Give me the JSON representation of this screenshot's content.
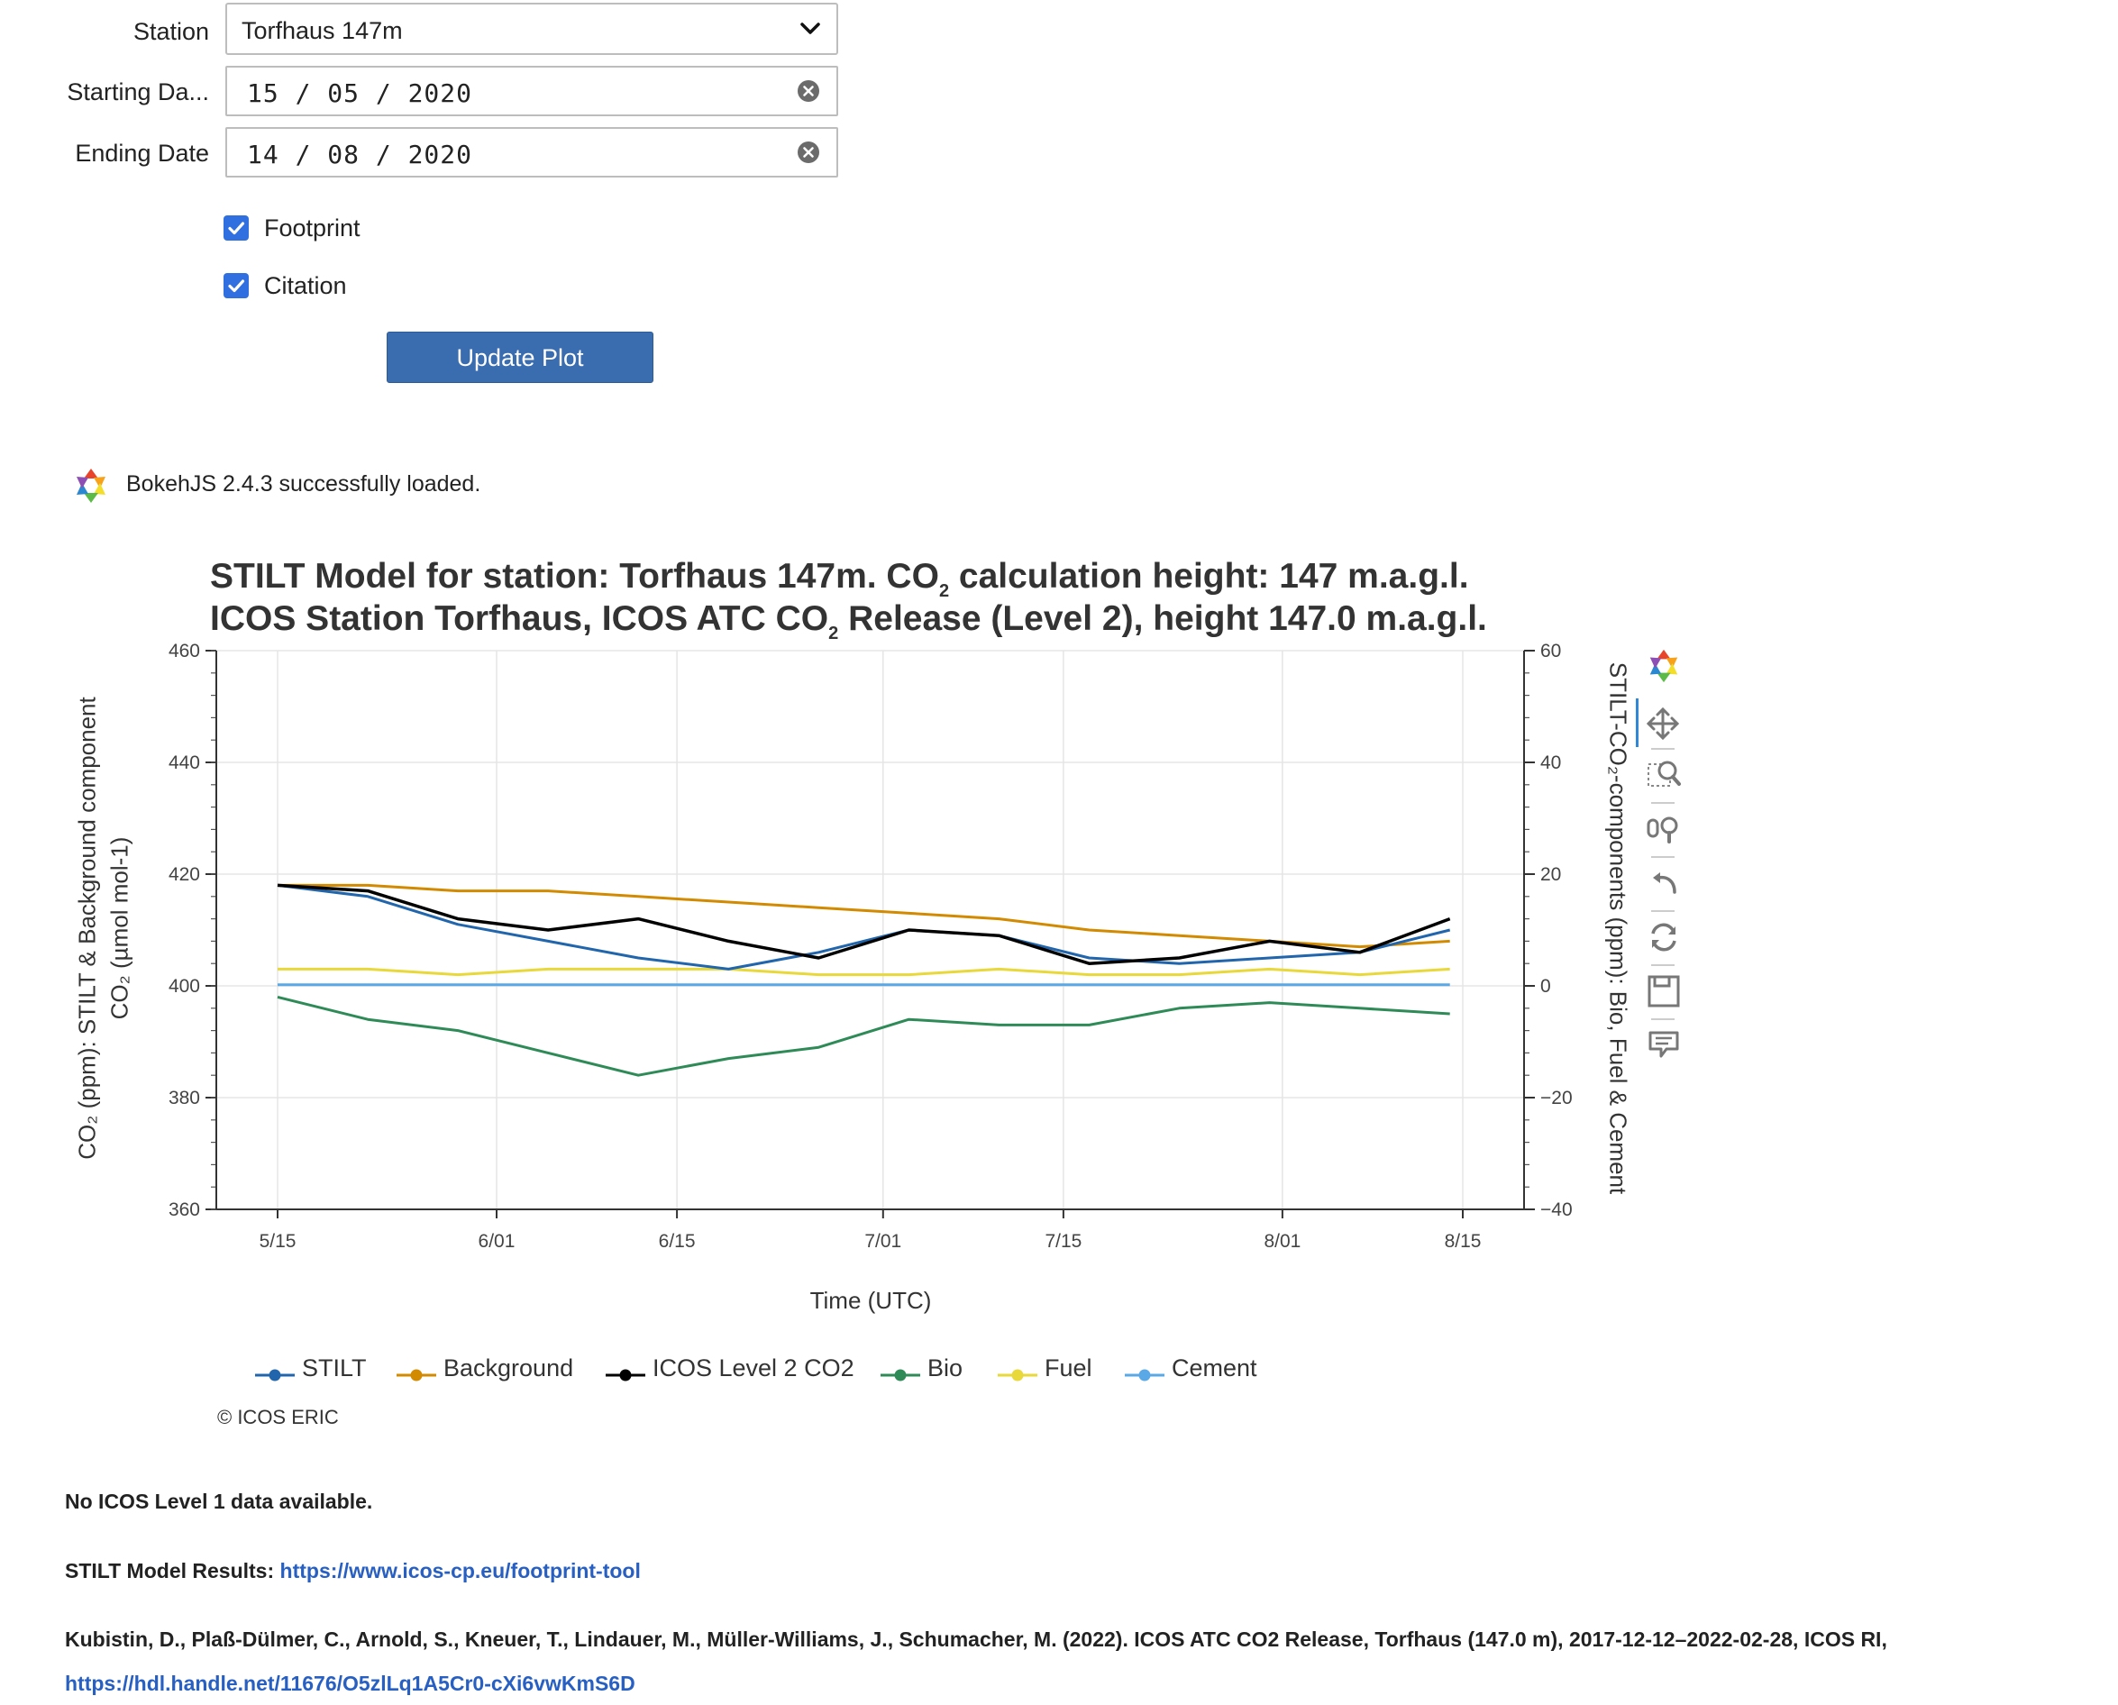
{
  "form": {
    "station_label": "Station",
    "station_value": "Torfhaus 147m",
    "start_label": "Starting Da...",
    "start_value": "15 / 05 / 2020",
    "end_label": "Ending Date",
    "end_value": "14 / 08 / 2020",
    "footprint_label": "Footprint",
    "footprint_checked": true,
    "citation_label": "Citation",
    "citation_checked": true,
    "update_button": "Update Plot"
  },
  "bokeh_message": "BokehJS 2.4.3 successfully loaded.",
  "chart_data": {
    "type": "line",
    "title_line1_a": "STILT Model for station: Torfhaus 147m. CO",
    "title_line1_sub": "2",
    "title_line1_b": " calculation height: 147 m.a.g.l.",
    "title_line2_a": "ICOS Station Torfhaus, ICOS ATC CO",
    "title_line2_sub": "2",
    "title_line2_b": " Release (Level 2), height 147.0 m.a.g.l.",
    "xlabel": "Time (UTC)",
    "ylabel_left_1": "CO₂ (ppm): STILT & Background component",
    "ylabel_left_2": "CO₂ (µmol mol-1)",
    "ylabel_right": "STILT-CO₂-components (ppm): Bio, Fuel & Cement",
    "x_ticks": [
      "5/15",
      "6/01",
      "6/15",
      "7/01",
      "7/15",
      "8/01",
      "8/15"
    ],
    "x_range": [
      "2020-05-15",
      "2020-08-15"
    ],
    "ylim_left": [
      360,
      460
    ],
    "y_ticks_left": [
      "460",
      "440",
      "420",
      "400",
      "380",
      "360"
    ],
    "ylim_right": [
      -40,
      60
    ],
    "y_ticks_right": [
      "60",
      "40",
      "20",
      "0",
      "−20",
      "−40"
    ],
    "grid": true,
    "legend_placement": "bottom",
    "series": [
      {
        "name": "STILT",
        "color": "#2166ac",
        "axis": "left",
        "dates": [
          "2020-05-15",
          "2020-05-22",
          "2020-05-29",
          "2020-06-05",
          "2020-06-12",
          "2020-06-19",
          "2020-06-26",
          "2020-07-03",
          "2020-07-10",
          "2020-07-17",
          "2020-07-24",
          "2020-07-31",
          "2020-08-07",
          "2020-08-14"
        ],
        "values": [
          418,
          416,
          411,
          408,
          405,
          403,
          406,
          410,
          409,
          405,
          404,
          405,
          406,
          410
        ]
      },
      {
        "name": "Background",
        "color": "#d28a00",
        "axis": "left",
        "dates": [
          "2020-05-15",
          "2020-05-22",
          "2020-05-29",
          "2020-06-05",
          "2020-06-12",
          "2020-06-19",
          "2020-06-26",
          "2020-07-03",
          "2020-07-10",
          "2020-07-17",
          "2020-07-24",
          "2020-07-31",
          "2020-08-07",
          "2020-08-14"
        ],
        "values": [
          418,
          418,
          417,
          417,
          416,
          415,
          414,
          413,
          412,
          410,
          409,
          408,
          407,
          408
        ]
      },
      {
        "name": "ICOS Level 2 CO2",
        "color": "#000000",
        "axis": "left",
        "dates": [
          "2020-05-15",
          "2020-05-22",
          "2020-05-29",
          "2020-06-05",
          "2020-06-12",
          "2020-06-19",
          "2020-06-26",
          "2020-07-03",
          "2020-07-10",
          "2020-07-17",
          "2020-07-24",
          "2020-07-31",
          "2020-08-07",
          "2020-08-14"
        ],
        "values": [
          418,
          417,
          412,
          410,
          412,
          408,
          405,
          410,
          409,
          404,
          405,
          408,
          406,
          412
        ]
      },
      {
        "name": "Bio",
        "color": "#2e8b57",
        "axis": "right",
        "dates": [
          "2020-05-15",
          "2020-05-22",
          "2020-05-29",
          "2020-06-05",
          "2020-06-12",
          "2020-06-19",
          "2020-06-26",
          "2020-07-03",
          "2020-07-10",
          "2020-07-17",
          "2020-07-24",
          "2020-07-31",
          "2020-08-07",
          "2020-08-14"
        ],
        "values": [
          -2,
          -6,
          -8,
          -12,
          -16,
          -13,
          -11,
          -6,
          -7,
          -7,
          -4,
          -3,
          -4,
          -5
        ]
      },
      {
        "name": "Fuel",
        "color": "#e8d83a",
        "axis": "right",
        "dates": [
          "2020-05-15",
          "2020-05-22",
          "2020-05-29",
          "2020-06-05",
          "2020-06-12",
          "2020-06-19",
          "2020-06-26",
          "2020-07-03",
          "2020-07-10",
          "2020-07-17",
          "2020-07-24",
          "2020-07-31",
          "2020-08-07",
          "2020-08-14"
        ],
        "values": [
          3,
          3,
          2,
          3,
          3,
          3,
          2,
          2,
          3,
          2,
          2,
          3,
          2,
          3
        ]
      },
      {
        "name": "Cement",
        "color": "#5aa8e6",
        "axis": "right",
        "dates": [
          "2020-05-15",
          "2020-05-22",
          "2020-05-29",
          "2020-06-05",
          "2020-06-12",
          "2020-06-19",
          "2020-06-26",
          "2020-07-03",
          "2020-07-10",
          "2020-07-17",
          "2020-07-24",
          "2020-07-31",
          "2020-08-07",
          "2020-08-14"
        ],
        "values": [
          0.2,
          0.2,
          0.2,
          0.2,
          0.2,
          0.2,
          0.2,
          0.2,
          0.2,
          0.2,
          0.2,
          0.2,
          0.2,
          0.2
        ]
      }
    ],
    "copyright": "© ICOS ERIC"
  },
  "toolbar": {
    "icons": [
      "bokeh-logo-icon",
      "pan-icon",
      "box-zoom-icon",
      "wheel-zoom-icon",
      "undo-icon",
      "reset-icon",
      "save-icon",
      "hover-icon"
    ]
  },
  "footer": {
    "level1": "No ICOS Level 1 data available.",
    "stilt_prefix": "STILT Model Results: ",
    "stilt_link": "https://www.icos-cp.eu/footprint-tool",
    "citation_text": "Kubistin, D., Plaß-Dülmer, C., Arnold, S., Kneuer, T., Lindauer, M., Müller-Williams, J., Schumacher, M. (2022). ICOS ATC CO2 Release, Torfhaus (147.0 m), 2017-12-12–2022-02-28, ICOS RI,",
    "citation_link": "https://hdl.handle.net/11676/O5zlLq1A5Cr0-cXi6vwKmS6D"
  }
}
